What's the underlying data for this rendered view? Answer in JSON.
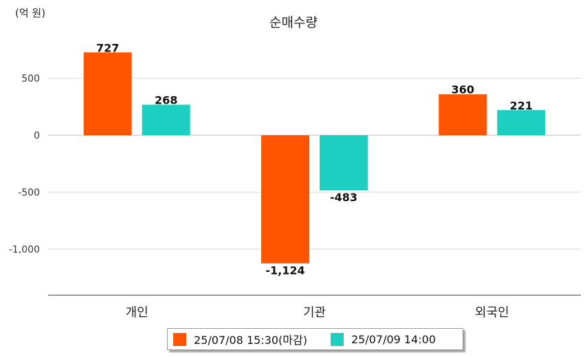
{
  "chart_data": {
    "type": "bar",
    "title": "순매수량",
    "unit_label": "(억 원)",
    "categories": [
      "개인",
      "기관",
      "외국인"
    ],
    "series": [
      {
        "name": "25/07/08 15:30(마감)",
        "color": "#ff5500",
        "values": [
          727,
          -1124,
          360
        ],
        "labels": [
          "727",
          "-1,124",
          "360"
        ]
      },
      {
        "name": "25/07/09 14:00",
        "color": "#1ccfc0",
        "values": [
          268,
          -483,
          221
        ],
        "labels": [
          "268",
          "-483",
          "221"
        ]
      }
    ],
    "yticks": [
      500,
      0,
      -500,
      -1000
    ],
    "ytick_labels": [
      "500",
      "0",
      "-500",
      "-1,000"
    ],
    "ylim": [
      -1400,
      850
    ],
    "grid": true,
    "legend_position": "bottom"
  }
}
